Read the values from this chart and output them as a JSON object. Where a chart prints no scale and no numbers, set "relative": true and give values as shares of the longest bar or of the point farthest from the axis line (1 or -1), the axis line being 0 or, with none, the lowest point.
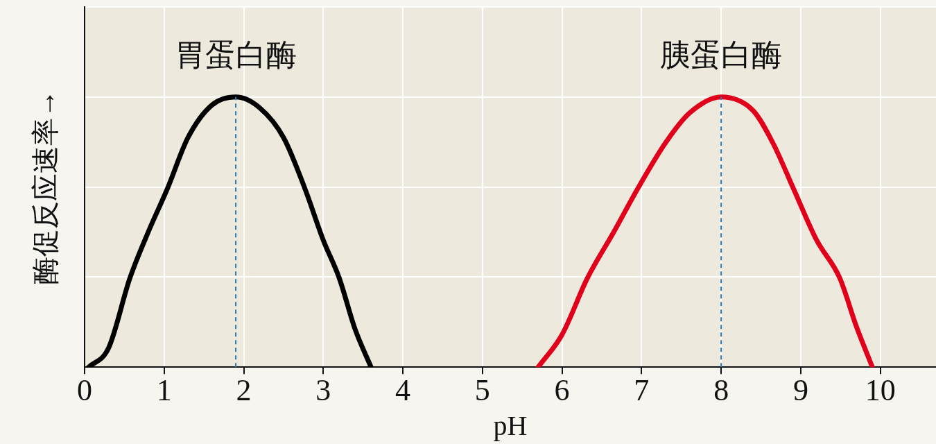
{
  "chart_data": {
    "type": "line",
    "xlabel": "pH",
    "ylabel": "酶促反应速率→",
    "relative": true,
    "xlim": [
      0,
      10.7
    ],
    "xticks": [
      0,
      1,
      2,
      3,
      4,
      5,
      6,
      7,
      8,
      9,
      10
    ],
    "grid": true,
    "legend": false,
    "marker": "none",
    "line_style": "solid",
    "series": [
      {
        "name": "胃蛋白酶",
        "color": "#000000",
        "x": [
          0.05,
          0.3,
          0.57,
          0.8,
          1.04,
          1.3,
          1.6,
          1.9,
          2.2,
          2.5,
          2.77,
          3.0,
          3.2,
          3.4,
          3.6
        ],
        "values": [
          0,
          0.07,
          0.33,
          0.5,
          0.66,
          0.85,
          0.97,
          1.0,
          0.96,
          0.85,
          0.66,
          0.47,
          0.33,
          0.14,
          0
        ]
      },
      {
        "name": "胰蛋白酶",
        "color": "#e0001b",
        "x": [
          5.7,
          6.0,
          6.32,
          6.65,
          6.95,
          7.3,
          7.6,
          8.0,
          8.4,
          8.65,
          8.91,
          9.2,
          9.49,
          9.7,
          9.9
        ],
        "values": [
          0,
          0.12,
          0.33,
          0.5,
          0.66,
          0.83,
          0.94,
          1.0,
          0.95,
          0.83,
          0.66,
          0.47,
          0.33,
          0.15,
          0
        ]
      }
    ],
    "ref_lines": [
      {
        "axis": "x",
        "value": 1.9,
        "color": "#2a7ab8",
        "line_style": "dashed"
      },
      {
        "axis": "x",
        "value": 8.0,
        "color": "#2a7ab8",
        "line_style": "dashed"
      }
    ]
  }
}
